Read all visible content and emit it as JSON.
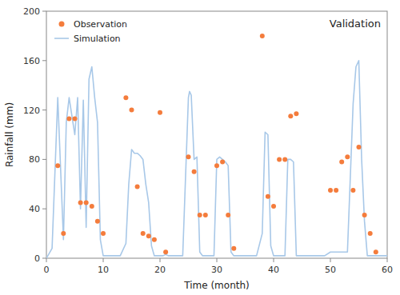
{
  "chart_data": {
    "type": "line",
    "title": "Validation",
    "xlabel": "Time (month)",
    "ylabel": "Rainfall (mm)",
    "xlim": [
      0,
      60
    ],
    "ylim": [
      0,
      200
    ],
    "xticks": [
      0,
      10,
      20,
      30,
      40,
      50,
      60
    ],
    "yticks": [
      0,
      40,
      80,
      120,
      160,
      200
    ],
    "grid": false,
    "legend": "upper left",
    "series": [
      {
        "name": "Observation",
        "type": "scatter",
        "marker": "circle",
        "color": "#f47c3c",
        "x": [
          2,
          3,
          4,
          5,
          6,
          7,
          8,
          9,
          10,
          14,
          15,
          16,
          17,
          18,
          19,
          20,
          21,
          25,
          26,
          27,
          28,
          30,
          31,
          32,
          33,
          38,
          39,
          40,
          41,
          42,
          43,
          44,
          50,
          51,
          52,
          53,
          54,
          55,
          56,
          57,
          58
        ],
        "values": [
          75,
          20,
          113,
          113,
          45,
          45,
          42,
          30,
          20,
          130,
          120,
          58,
          20,
          18,
          15,
          118,
          5,
          82,
          70,
          35,
          35,
          75,
          78,
          35,
          8,
          180,
          50,
          42,
          80,
          80,
          115,
          117,
          55,
          55,
          78,
          82,
          55,
          90,
          35,
          20,
          5
        ]
      },
      {
        "name": "Simulation",
        "type": "line",
        "color": "#a8c8e8",
        "x": [
          0,
          1,
          2,
          3,
          3.5,
          4,
          4.5,
          5,
          5.5,
          6,
          6.5,
          7,
          7.5,
          8,
          8.5,
          9,
          9.5,
          10,
          10.5,
          11,
          11.5,
          12,
          12.5,
          13,
          14,
          14.5,
          15,
          15.5,
          16,
          16.5,
          17,
          17.5,
          18,
          18.5,
          19,
          19.5,
          20,
          20.5,
          21,
          21.5,
          22,
          23,
          24,
          25,
          25.2,
          25.5,
          26,
          26.5,
          27,
          27.5,
          28,
          28.5,
          29,
          29.5,
          30,
          30.5,
          31,
          31.5,
          32,
          32.5,
          33,
          33.5,
          34,
          35,
          36,
          37,
          38,
          38.5,
          39,
          39.5,
          40,
          40.5,
          41,
          41.5,
          42,
          42.5,
          43,
          43.5,
          44,
          44.5,
          45,
          46,
          47,
          48,
          49,
          50,
          51,
          52,
          53,
          54,
          54.5,
          55,
          55.5,
          56,
          56.5,
          57,
          57.5,
          58,
          59,
          60
        ],
        "values": [
          0,
          8,
          130,
          15,
          110,
          130,
          115,
          100,
          130,
          40,
          128,
          25,
          145,
          155,
          130,
          110,
          15,
          2,
          2,
          2,
          2,
          2,
          2,
          2,
          12,
          60,
          88,
          85,
          85,
          83,
          80,
          60,
          45,
          10,
          2,
          2,
          2,
          2,
          3,
          2,
          2,
          2,
          2,
          130,
          135,
          132,
          80,
          82,
          5,
          2,
          2,
          2,
          2,
          2,
          80,
          82,
          80,
          78,
          75,
          5,
          2,
          2,
          2,
          2,
          2,
          2,
          20,
          102,
          100,
          10,
          2,
          2,
          2,
          2,
          2,
          80,
          80,
          78,
          2,
          2,
          2,
          2,
          2,
          2,
          2,
          5,
          5,
          5,
          5,
          125,
          155,
          160,
          80,
          30,
          2,
          2,
          2,
          2,
          2,
          2
        ]
      }
    ]
  }
}
